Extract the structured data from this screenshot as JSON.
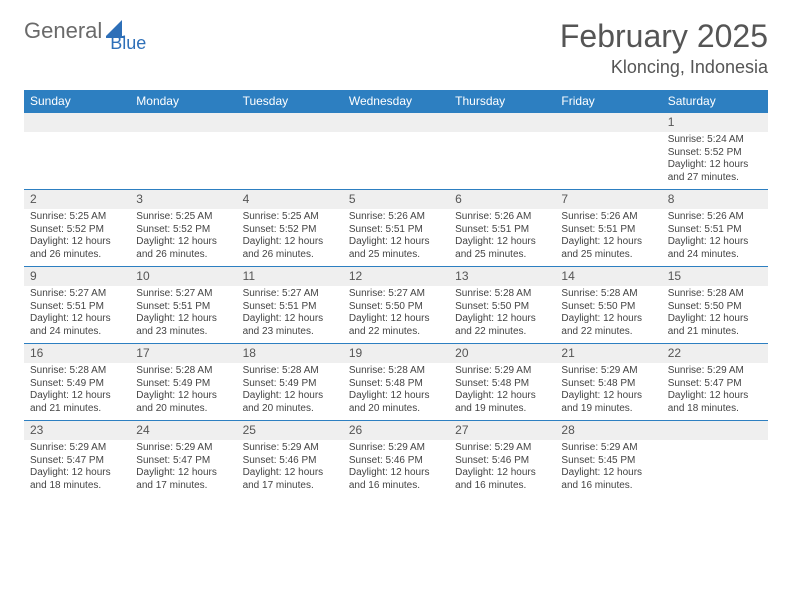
{
  "logo": {
    "text1": "General",
    "text2": "Blue"
  },
  "title": "February 2025",
  "location": "Kloncing, Indonesia",
  "colors": {
    "header_bg": "#2d7fc1",
    "header_text": "#ffffff",
    "daynum_bg": "#efefef",
    "rule": "#2d7fc1",
    "logo_gray": "#6a6a6a",
    "logo_blue": "#2d6fb8"
  },
  "days_of_week": [
    "Sunday",
    "Monday",
    "Tuesday",
    "Wednesday",
    "Thursday",
    "Friday",
    "Saturday"
  ],
  "weeks": [
    [
      {
        "n": "",
        "sr": "",
        "ss": "",
        "dl": ""
      },
      {
        "n": "",
        "sr": "",
        "ss": "",
        "dl": ""
      },
      {
        "n": "",
        "sr": "",
        "ss": "",
        "dl": ""
      },
      {
        "n": "",
        "sr": "",
        "ss": "",
        "dl": ""
      },
      {
        "n": "",
        "sr": "",
        "ss": "",
        "dl": ""
      },
      {
        "n": "",
        "sr": "",
        "ss": "",
        "dl": ""
      },
      {
        "n": "1",
        "sr": "Sunrise: 5:24 AM",
        "ss": "Sunset: 5:52 PM",
        "dl": "Daylight: 12 hours and 27 minutes."
      }
    ],
    [
      {
        "n": "2",
        "sr": "Sunrise: 5:25 AM",
        "ss": "Sunset: 5:52 PM",
        "dl": "Daylight: 12 hours and 26 minutes."
      },
      {
        "n": "3",
        "sr": "Sunrise: 5:25 AM",
        "ss": "Sunset: 5:52 PM",
        "dl": "Daylight: 12 hours and 26 minutes."
      },
      {
        "n": "4",
        "sr": "Sunrise: 5:25 AM",
        "ss": "Sunset: 5:52 PM",
        "dl": "Daylight: 12 hours and 26 minutes."
      },
      {
        "n": "5",
        "sr": "Sunrise: 5:26 AM",
        "ss": "Sunset: 5:51 PM",
        "dl": "Daylight: 12 hours and 25 minutes."
      },
      {
        "n": "6",
        "sr": "Sunrise: 5:26 AM",
        "ss": "Sunset: 5:51 PM",
        "dl": "Daylight: 12 hours and 25 minutes."
      },
      {
        "n": "7",
        "sr": "Sunrise: 5:26 AM",
        "ss": "Sunset: 5:51 PM",
        "dl": "Daylight: 12 hours and 25 minutes."
      },
      {
        "n": "8",
        "sr": "Sunrise: 5:26 AM",
        "ss": "Sunset: 5:51 PM",
        "dl": "Daylight: 12 hours and 24 minutes."
      }
    ],
    [
      {
        "n": "9",
        "sr": "Sunrise: 5:27 AM",
        "ss": "Sunset: 5:51 PM",
        "dl": "Daylight: 12 hours and 24 minutes."
      },
      {
        "n": "10",
        "sr": "Sunrise: 5:27 AM",
        "ss": "Sunset: 5:51 PM",
        "dl": "Daylight: 12 hours and 23 minutes."
      },
      {
        "n": "11",
        "sr": "Sunrise: 5:27 AM",
        "ss": "Sunset: 5:51 PM",
        "dl": "Daylight: 12 hours and 23 minutes."
      },
      {
        "n": "12",
        "sr": "Sunrise: 5:27 AM",
        "ss": "Sunset: 5:50 PM",
        "dl": "Daylight: 12 hours and 22 minutes."
      },
      {
        "n": "13",
        "sr": "Sunrise: 5:28 AM",
        "ss": "Sunset: 5:50 PM",
        "dl": "Daylight: 12 hours and 22 minutes."
      },
      {
        "n": "14",
        "sr": "Sunrise: 5:28 AM",
        "ss": "Sunset: 5:50 PM",
        "dl": "Daylight: 12 hours and 22 minutes."
      },
      {
        "n": "15",
        "sr": "Sunrise: 5:28 AM",
        "ss": "Sunset: 5:50 PM",
        "dl": "Daylight: 12 hours and 21 minutes."
      }
    ],
    [
      {
        "n": "16",
        "sr": "Sunrise: 5:28 AM",
        "ss": "Sunset: 5:49 PM",
        "dl": "Daylight: 12 hours and 21 minutes."
      },
      {
        "n": "17",
        "sr": "Sunrise: 5:28 AM",
        "ss": "Sunset: 5:49 PM",
        "dl": "Daylight: 12 hours and 20 minutes."
      },
      {
        "n": "18",
        "sr": "Sunrise: 5:28 AM",
        "ss": "Sunset: 5:49 PM",
        "dl": "Daylight: 12 hours and 20 minutes."
      },
      {
        "n": "19",
        "sr": "Sunrise: 5:28 AM",
        "ss": "Sunset: 5:48 PM",
        "dl": "Daylight: 12 hours and 20 minutes."
      },
      {
        "n": "20",
        "sr": "Sunrise: 5:29 AM",
        "ss": "Sunset: 5:48 PM",
        "dl": "Daylight: 12 hours and 19 minutes."
      },
      {
        "n": "21",
        "sr": "Sunrise: 5:29 AM",
        "ss": "Sunset: 5:48 PM",
        "dl": "Daylight: 12 hours and 19 minutes."
      },
      {
        "n": "22",
        "sr": "Sunrise: 5:29 AM",
        "ss": "Sunset: 5:47 PM",
        "dl": "Daylight: 12 hours and 18 minutes."
      }
    ],
    [
      {
        "n": "23",
        "sr": "Sunrise: 5:29 AM",
        "ss": "Sunset: 5:47 PM",
        "dl": "Daylight: 12 hours and 18 minutes."
      },
      {
        "n": "24",
        "sr": "Sunrise: 5:29 AM",
        "ss": "Sunset: 5:47 PM",
        "dl": "Daylight: 12 hours and 17 minutes."
      },
      {
        "n": "25",
        "sr": "Sunrise: 5:29 AM",
        "ss": "Sunset: 5:46 PM",
        "dl": "Daylight: 12 hours and 17 minutes."
      },
      {
        "n": "26",
        "sr": "Sunrise: 5:29 AM",
        "ss": "Sunset: 5:46 PM",
        "dl": "Daylight: 12 hours and 16 minutes."
      },
      {
        "n": "27",
        "sr": "Sunrise: 5:29 AM",
        "ss": "Sunset: 5:46 PM",
        "dl": "Daylight: 12 hours and 16 minutes."
      },
      {
        "n": "28",
        "sr": "Sunrise: 5:29 AM",
        "ss": "Sunset: 5:45 PM",
        "dl": "Daylight: 12 hours and 16 minutes."
      },
      {
        "n": "",
        "sr": "",
        "ss": "",
        "dl": ""
      }
    ]
  ]
}
